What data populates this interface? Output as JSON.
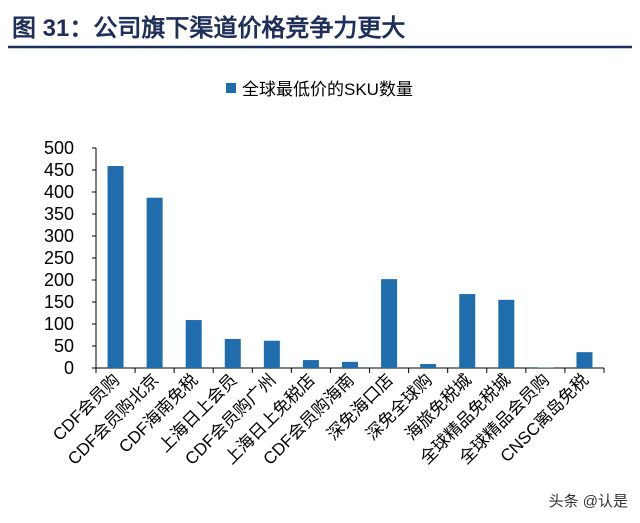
{
  "title": {
    "figure_label": "图 31：",
    "text": "公司旗下渠道价格竞争力更大"
  },
  "watermark": "头条 @认是",
  "colors": {
    "title": "#1f2f5c",
    "rule": "#1f2f5c",
    "bar": "#1f6dac"
  },
  "chart_data": {
    "type": "bar",
    "categories": [
      "CDF会员购",
      "CDF会员购北京",
      "CDF海南免税",
      "上海日上会员",
      "CDF会员购广州",
      "上海日上免税店",
      "CDF会员购海南",
      "深免海口店",
      "深免全球购",
      "海旅免税城",
      "全球精品免税城",
      "全球精品会员购",
      "CNSC离岛免税"
    ],
    "series": [
      {
        "name": "全球最低价的SKU数量",
        "values": [
          459,
          387,
          109,
          66,
          62,
          18,
          14,
          202,
          9,
          168,
          155,
          1,
          36
        ]
      }
    ],
    "ylim": [
      0,
      500
    ],
    "yticks": [
      0,
      50,
      100,
      150,
      200,
      250,
      300,
      350,
      400,
      450,
      500
    ],
    "legend": "top",
    "grid": false
  }
}
